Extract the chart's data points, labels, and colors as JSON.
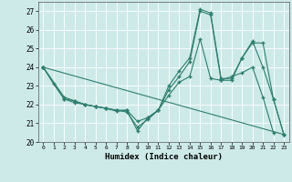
{
  "xlabel": "Humidex (Indice chaleur)",
  "ylabel": "",
  "xlim": [
    -0.5,
    23.5
  ],
  "ylim": [
    20,
    27.5
  ],
  "yticks": [
    20,
    21,
    22,
    23,
    24,
    25,
    26,
    27
  ],
  "xticks": [
    0,
    1,
    2,
    3,
    4,
    5,
    6,
    7,
    8,
    9,
    10,
    11,
    12,
    13,
    14,
    15,
    16,
    17,
    18,
    19,
    20,
    21,
    22,
    23
  ],
  "bg_color": "#cdeae8",
  "line_color": "#2e7d6e",
  "series": [
    {
      "x": [
        0,
        1,
        2,
        3,
        4,
        5,
        6,
        7,
        8,
        9,
        10,
        11,
        12,
        13,
        14,
        15,
        16,
        17,
        18,
        19,
        20,
        21,
        22,
        23
      ],
      "y": [
        24.0,
        23.1,
        22.3,
        22.2,
        22.0,
        21.9,
        21.8,
        21.7,
        21.7,
        21.1,
        21.3,
        21.7,
        22.5,
        23.2,
        23.5,
        25.5,
        23.4,
        23.3,
        23.5,
        23.7,
        24.0,
        22.4,
        20.5,
        null
      ]
    },
    {
      "x": [
        0,
        2,
        3,
        4,
        5,
        6,
        7,
        8,
        9,
        10,
        11,
        12,
        13,
        14,
        15,
        16,
        17,
        18,
        19,
        20,
        21,
        22,
        23
      ],
      "y": [
        24.0,
        22.3,
        22.1,
        22.0,
        21.9,
        21.8,
        21.7,
        21.6,
        20.8,
        21.2,
        21.7,
        22.8,
        23.5,
        24.3,
        27.0,
        26.8,
        23.3,
        23.3,
        24.5,
        25.3,
        25.3,
        22.3,
        20.4
      ]
    },
    {
      "x": [
        0,
        23
      ],
      "y": [
        24.0,
        20.4
      ]
    },
    {
      "x": [
        0,
        2,
        3,
        4,
        5,
        6,
        7,
        8,
        9,
        10,
        11,
        12,
        13,
        14,
        15,
        16,
        17,
        18,
        19,
        20,
        21,
        22,
        23
      ],
      "y": [
        24.0,
        22.4,
        22.2,
        22.0,
        21.9,
        21.8,
        21.65,
        21.7,
        20.6,
        21.3,
        21.7,
        23.0,
        23.8,
        24.5,
        27.1,
        26.9,
        23.4,
        23.4,
        24.5,
        25.4,
        24.0,
        22.3,
        20.4
      ]
    }
  ]
}
